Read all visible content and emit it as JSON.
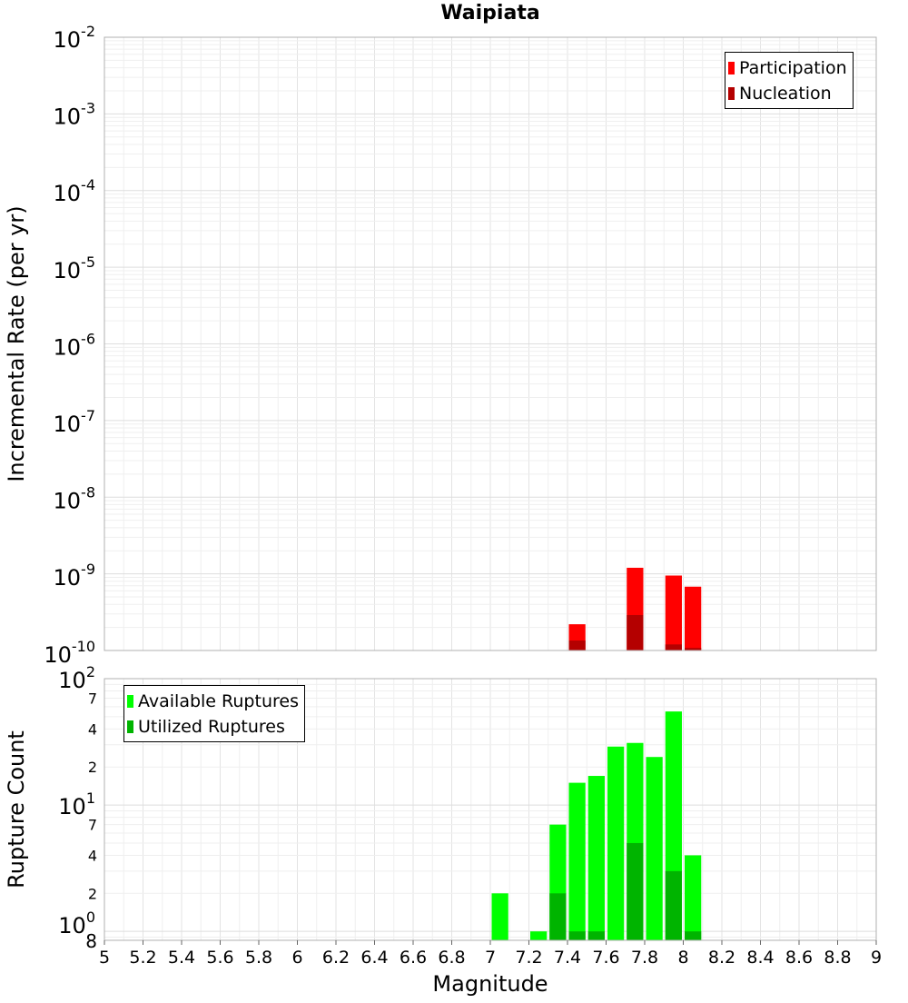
{
  "title": "Waipiata",
  "chart_data": [
    {
      "type": "bar",
      "ylabel": "Incremental Rate (per yr)",
      "yscale": "log",
      "ylim": [
        1e-10,
        0.01
      ],
      "xlim": [
        5,
        9
      ],
      "bin_width": 0.1,
      "ytick_labels": [
        {
          "base": "10",
          "exp": "-2"
        },
        {
          "base": "10",
          "exp": "-3"
        },
        {
          "base": "10",
          "exp": "-4"
        },
        {
          "base": "10",
          "exp": "-5"
        },
        {
          "base": "10",
          "exp": "-6"
        },
        {
          "base": "10",
          "exp": "-7"
        },
        {
          "base": "10",
          "exp": "-8"
        },
        {
          "base": "10",
          "exp": "-9"
        },
        {
          "base": "10",
          "exp": "-10"
        }
      ],
      "legend": {
        "position": "top-right",
        "items": [
          "Participation",
          "Nucleation"
        ]
      },
      "series": [
        {
          "name": "Participation",
          "color": "#ff0000",
          "x": [
            7.45,
            7.75,
            7.95,
            8.05
          ],
          "values": [
            2.2e-10,
            1.2e-09,
            9.5e-10,
            6.8e-10
          ]
        },
        {
          "name": "Nucleation",
          "color": "#b40000",
          "x": [
            7.45,
            7.75,
            7.95,
            8.05
          ],
          "values": [
            1.35e-10,
            2.9e-10,
            1.2e-10,
            1.08e-10
          ]
        }
      ]
    },
    {
      "type": "bar",
      "ylabel": "Rupture Count",
      "xlabel": "Magnitude",
      "yscale": "log",
      "ylim": [
        0.85,
        100
      ],
      "xlim": [
        5,
        9
      ],
      "bin_width": 0.1,
      "xtick_labels": [
        "5",
        "5.2",
        "5.4",
        "5.6",
        "5.8",
        "6",
        "6.2",
        "6.4",
        "6.6",
        "6.8",
        "7",
        "7.2",
        "7.4",
        "7.6",
        "7.8",
        "8",
        "8.2",
        "8.4",
        "8.6",
        "8.8",
        "9"
      ],
      "ytick_labels": [
        {
          "base": "10",
          "exp": "2"
        },
        {
          "base": "10",
          "exp": "1"
        },
        {
          "base": "10",
          "exp": "0"
        },
        {
          "label": "7"
        },
        {
          "label": "4"
        },
        {
          "label": "2"
        },
        {
          "label": "7"
        },
        {
          "label": "4"
        },
        {
          "label": "2"
        },
        {
          "label": "8"
        }
      ],
      "legend": {
        "position": "top-left",
        "items": [
          "Available Ruptures",
          "Utilized Ruptures"
        ]
      },
      "series": [
        {
          "name": "Available Ruptures",
          "color": "#00ff00",
          "x": [
            7.05,
            7.25,
            7.35,
            7.45,
            7.55,
            7.65,
            7.75,
            7.85,
            7.95,
            8.05
          ],
          "values": [
            2,
            1,
            7,
            15,
            17,
            29,
            31,
            24,
            55,
            4
          ]
        },
        {
          "name": "Utilized Ruptures",
          "color": "#00b400",
          "x": [
            7.35,
            7.45,
            7.55,
            7.75,
            7.95,
            8.05
          ],
          "values": [
            2,
            1,
            1,
            5,
            3,
            1
          ]
        }
      ]
    }
  ]
}
